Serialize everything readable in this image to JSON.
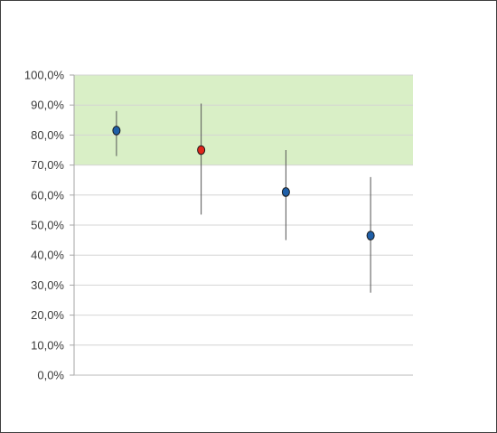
{
  "chart_data": {
    "type": "scatter",
    "title": "",
    "xlabel": "",
    "ylabel": "",
    "ylim": [
      0,
      100
    ],
    "y_ticks": [
      "0,0%",
      "10,0%",
      "20,0%",
      "30,0%",
      "40,0%",
      "50,0%",
      "60,0%",
      "70,0%",
      "80,0%",
      "90,0%",
      "100,0%"
    ],
    "grid": true,
    "legend": "none",
    "target_band": {
      "from": 70,
      "to": 100,
      "color": "#d9efc6"
    },
    "points": [
      {
        "x": 1,
        "y": 81.5,
        "low": 73.0,
        "high": 88.0,
        "color": "#1f5fa8"
      },
      {
        "x": 2,
        "y": 75.0,
        "low": 53.5,
        "high": 90.5,
        "color": "#e0261c"
      },
      {
        "x": 3,
        "y": 61.0,
        "low": 45.0,
        "high": 75.0,
        "color": "#1f5fa8"
      },
      {
        "x": 4,
        "y": 46.5,
        "low": 27.5,
        "high": 66.0,
        "color": "#1f5fa8"
      }
    ]
  }
}
